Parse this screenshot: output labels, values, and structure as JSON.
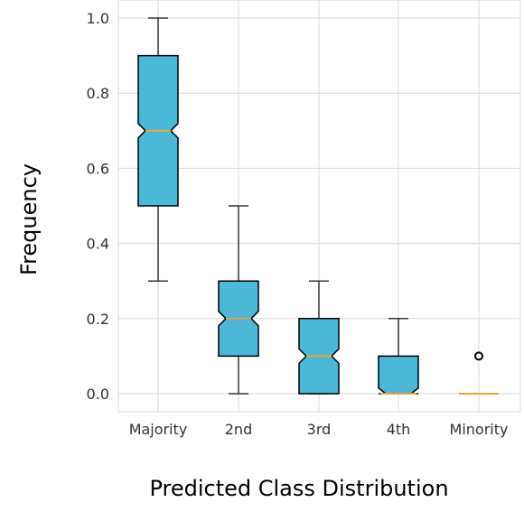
{
  "chart_data": {
    "type": "boxplot",
    "notched": true,
    "title": "",
    "xlabel": "Predicted Class Distribution",
    "ylabel": "Frequency",
    "categories": [
      "Majority",
      "2nd",
      "3rd",
      "4th",
      "Minority"
    ],
    "y_ticks": [
      "0.0",
      "0.2",
      "0.4",
      "0.6",
      "0.8",
      "1.0"
    ],
    "ylim": [
      -0.05,
      1.05
    ],
    "grid": true,
    "boxes": [
      {
        "category": "Majority",
        "whisker_low": 0.3,
        "q1": 0.5,
        "median": 0.7,
        "q3": 0.9,
        "whisker_high": 1.0,
        "outliers": []
      },
      {
        "category": "2nd",
        "whisker_low": 0.0,
        "q1": 0.1,
        "median": 0.2,
        "q3": 0.3,
        "whisker_high": 0.5,
        "outliers": []
      },
      {
        "category": "3rd",
        "whisker_low": 0.0,
        "q1": 0.0,
        "median": 0.1,
        "q3": 0.2,
        "whisker_high": 0.3,
        "outliers": []
      },
      {
        "category": "4th",
        "whisker_low": 0.0,
        "q1": 0.0,
        "median": 0.0,
        "q3": 0.1,
        "whisker_high": 0.2,
        "outliers": []
      },
      {
        "category": "Minority",
        "whisker_low": 0.0,
        "q1": 0.0,
        "median": 0.0,
        "q3": 0.0,
        "whisker_high": 0.0,
        "outliers": [
          0.1
        ]
      }
    ],
    "colors": {
      "box_fill": "#4BB8D8",
      "box_edge": "#000000",
      "median": "#E8A33D",
      "grid": "#D9D9D9",
      "whisker": "#333333"
    }
  }
}
